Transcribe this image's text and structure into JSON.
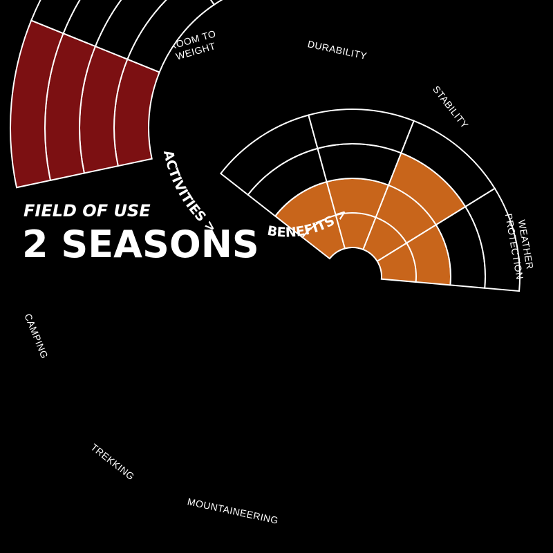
{
  "header": {
    "subtitle": "FIELD OF USE",
    "title": "2 SEASONS"
  },
  "chart_data": [
    {
      "type": "radial-bar",
      "name": "BENEFITS >",
      "levels": 4,
      "color": "#c8651b",
      "categories": [
        "ROOM TO WEIGHT",
        "DURABILITY",
        "STABILITY",
        "WEATHER PROTECTION"
      ],
      "values": [
        2,
        2,
        3,
        2
      ]
    },
    {
      "type": "radial-bar",
      "name": "ACTIVITIES >",
      "levels": 4,
      "color": "#7c1012",
      "categories": [
        "CAMPING",
        "TREKKING",
        "MOUNTAINEERING"
      ],
      "values": [
        4,
        0,
        0
      ]
    }
  ],
  "colors": {
    "background": "#000000",
    "stroke": "#ffffff",
    "empty": "#000000"
  }
}
